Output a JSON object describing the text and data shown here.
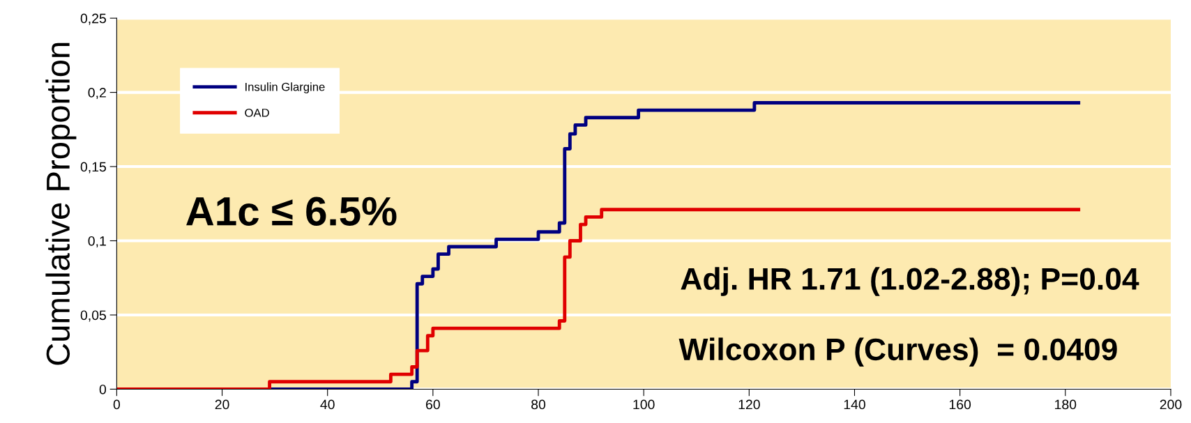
{
  "chart_data": {
    "type": "step",
    "ylabel": "Cumulative Proportion",
    "series": [
      {
        "name": "Insulin Glargine",
        "color": "#000080",
        "x": [
          0,
          56,
          57,
          58,
          60,
          61,
          63,
          72,
          80,
          84,
          85,
          86,
          87,
          89,
          99,
          121,
          182.5
        ],
        "values": [
          0,
          0.005,
          0.071,
          0.076,
          0.081,
          0.091,
          0.096,
          0.101,
          0.106,
          0.112,
          0.162,
          0.172,
          0.178,
          0.183,
          0.188,
          0.193,
          0.193
        ]
      },
      {
        "name": "OAD",
        "color": "#e00000",
        "x": [
          0,
          29,
          52,
          56,
          57,
          59,
          60,
          84,
          85,
          86,
          88,
          89,
          92,
          182.5
        ],
        "values": [
          0,
          0.005,
          0.01,
          0.015,
          0.026,
          0.036,
          0.041,
          0.046,
          0.089,
          0.1,
          0.111,
          0.116,
          0.121,
          0.121
        ]
      }
    ],
    "xlim": [
      0,
      200
    ],
    "xticks": [
      0,
      20,
      40,
      60,
      80,
      100,
      120,
      140,
      160,
      180,
      200
    ],
    "ylim": [
      0,
      0.25
    ],
    "yticks": [
      0,
      {
        "value": 0.05,
        "label": "0,05"
      },
      {
        "value": 0.1,
        "label": "0,1"
      },
      {
        "value": 0.15,
        "label": "0,15"
      },
      {
        "value": 0.2,
        "label": "0,2"
      },
      {
        "value": 0.25,
        "label": "0,25"
      }
    ],
    "grid": "y",
    "legend": "top left",
    "line_style": "solid",
    "marker": "none",
    "annotations": [
      "A1c ≤ 6.5%",
      "Adj. HR 1.71 (1.02-2.88); P=0.04",
      "Wilcoxon P (Curves)  = 0.0409"
    ]
  }
}
